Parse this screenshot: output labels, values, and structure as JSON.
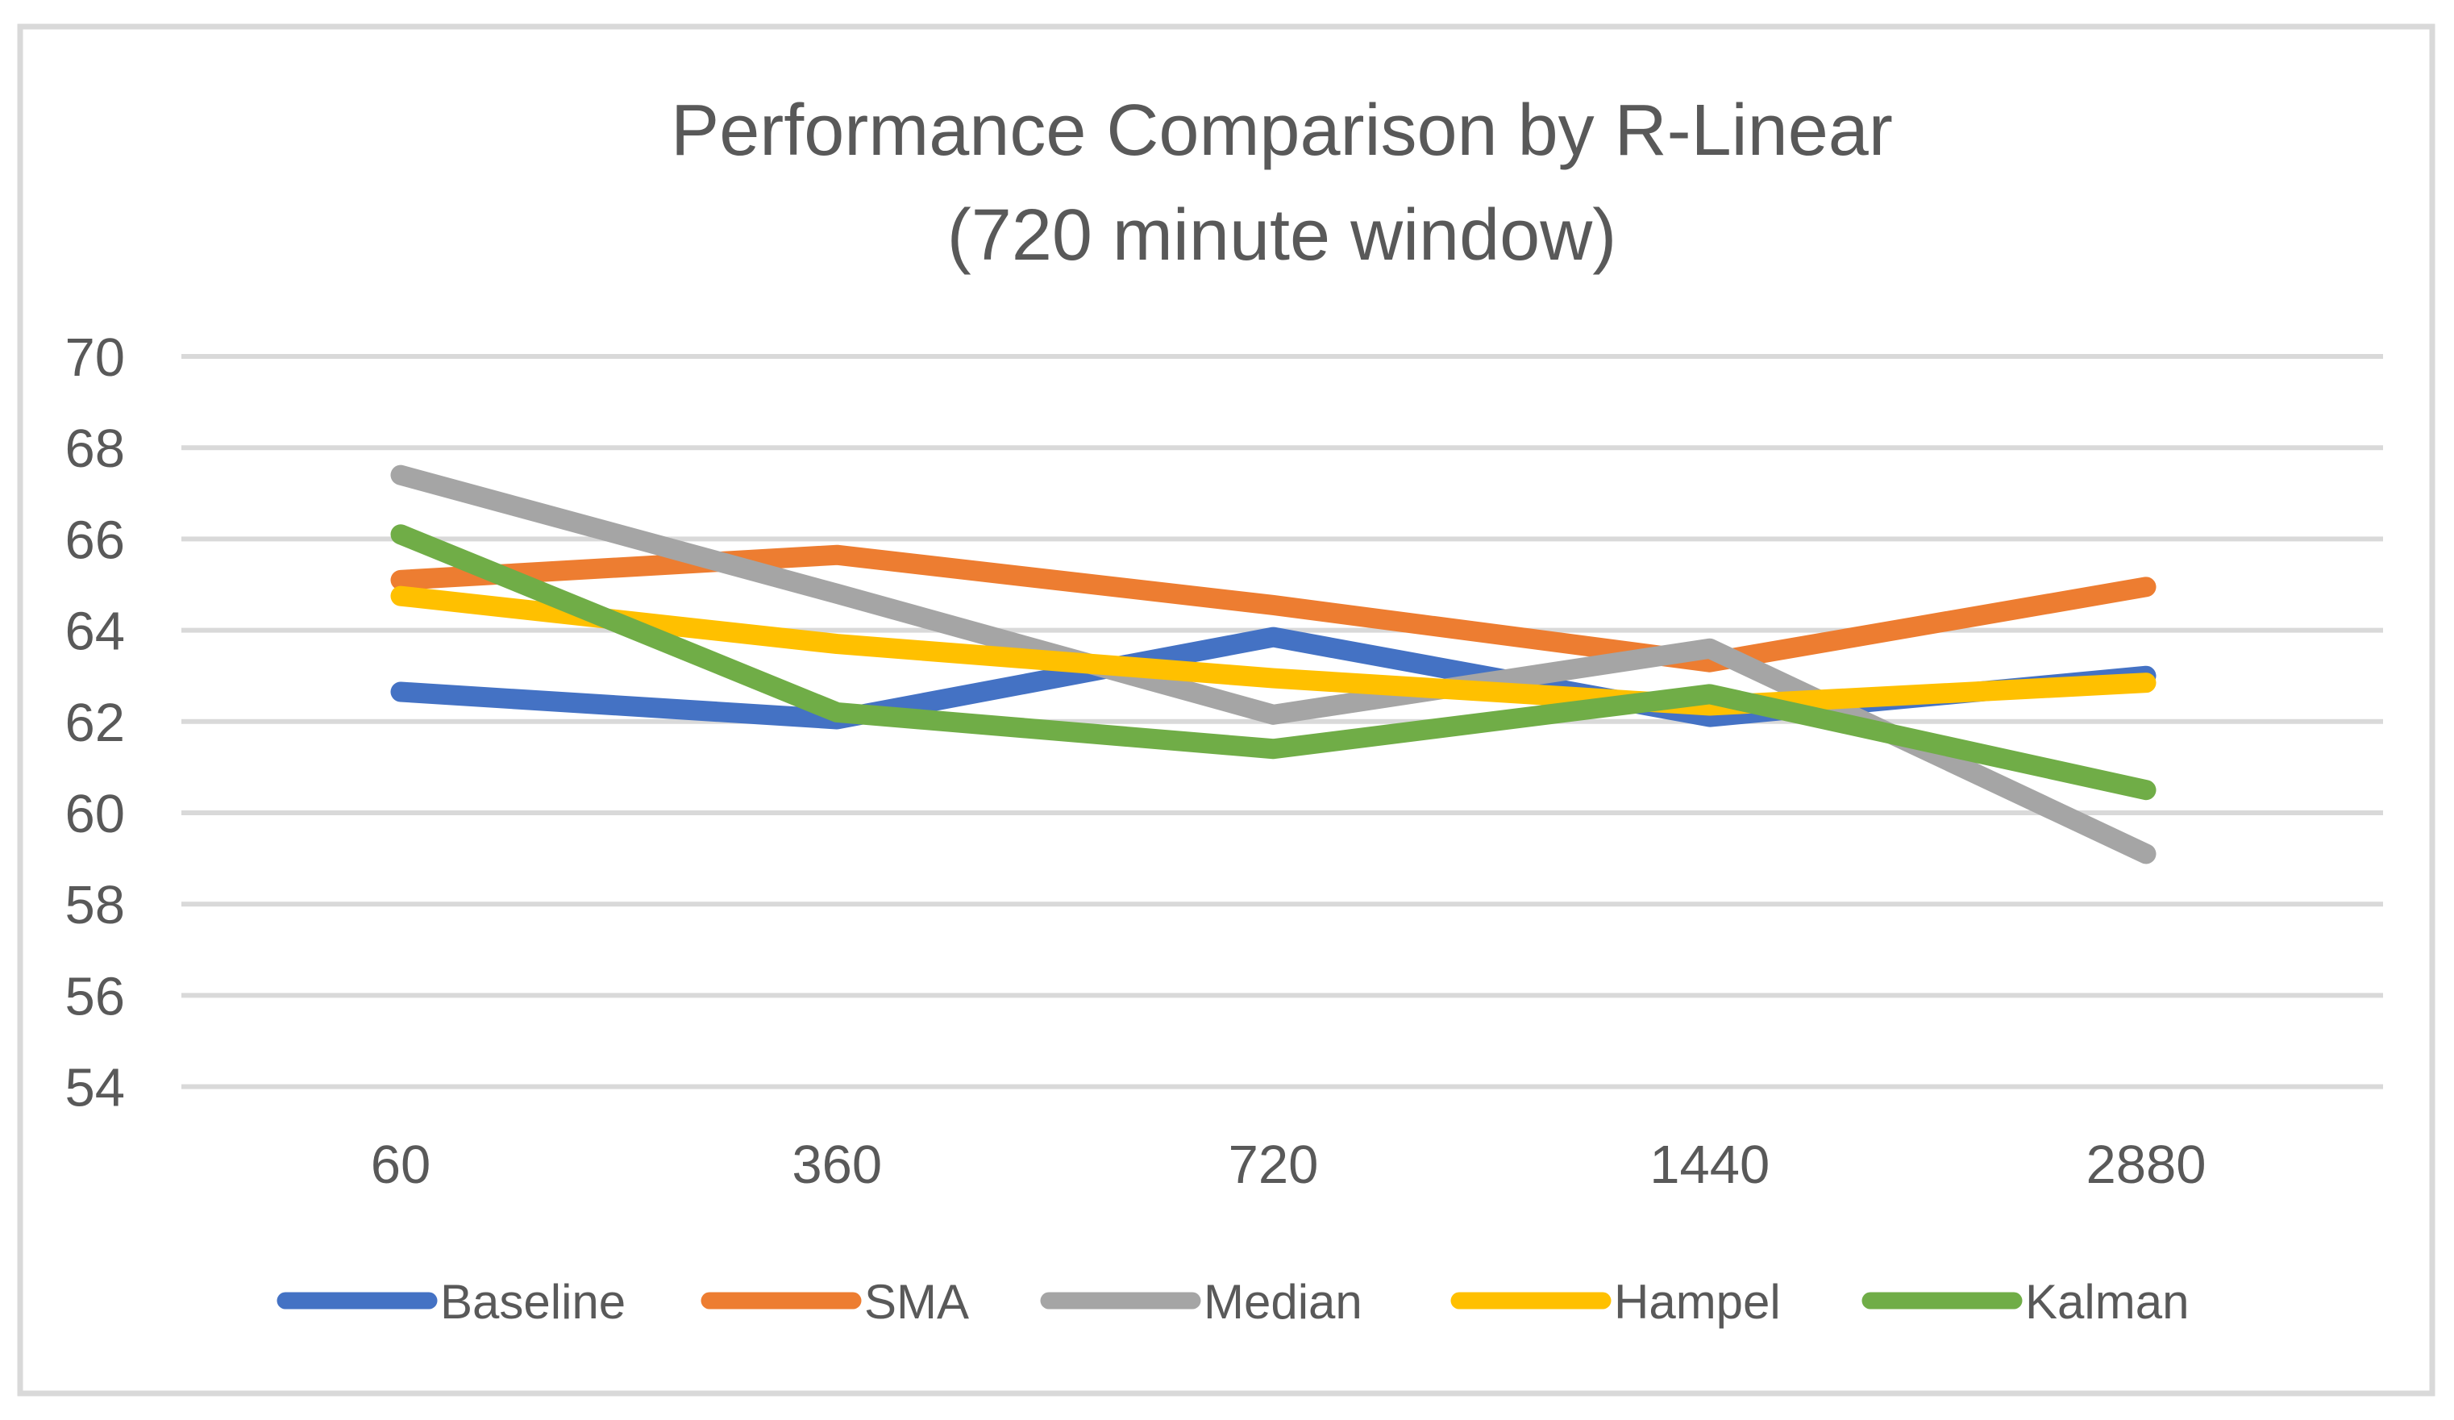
{
  "chart_data": {
    "type": "line",
    "title": "Performance Comparison by R-Linear",
    "subtitle": "(720 minute window)",
    "categories": [
      "60",
      "360",
      "720",
      "1440",
      "2880"
    ],
    "series": [
      {
        "name": "Baseline",
        "color": "#4472C4",
        "values": [
          62.65,
          62.05,
          63.85,
          62.1,
          63.0
        ]
      },
      {
        "name": "SMA",
        "color": "#ED7D31",
        "values": [
          65.1,
          65.65,
          64.55,
          63.3,
          64.95
        ]
      },
      {
        "name": "Median",
        "color": "#A5A5A5",
        "values": [
          67.4,
          64.8,
          62.15,
          63.6,
          59.1
        ]
      },
      {
        "name": "Hampel",
        "color": "#FFC000",
        "values": [
          64.75,
          63.7,
          62.95,
          62.35,
          62.85
        ]
      },
      {
        "name": "Kalman",
        "color": "#70AD47",
        "values": [
          66.1,
          62.2,
          61.4,
          62.6,
          60.5
        ]
      }
    ],
    "y_ticks": [
      70,
      68,
      66,
      64,
      62,
      60,
      58,
      56,
      54
    ],
    "ylim": [
      54,
      70
    ],
    "xlabel": "",
    "ylabel": "",
    "grid": true,
    "legend_position": "bottom",
    "gridline_color": "#D9D9D9",
    "border_color": "#D9D9D9",
    "text_color": "#595959",
    "background": "#FFFFFF"
  }
}
